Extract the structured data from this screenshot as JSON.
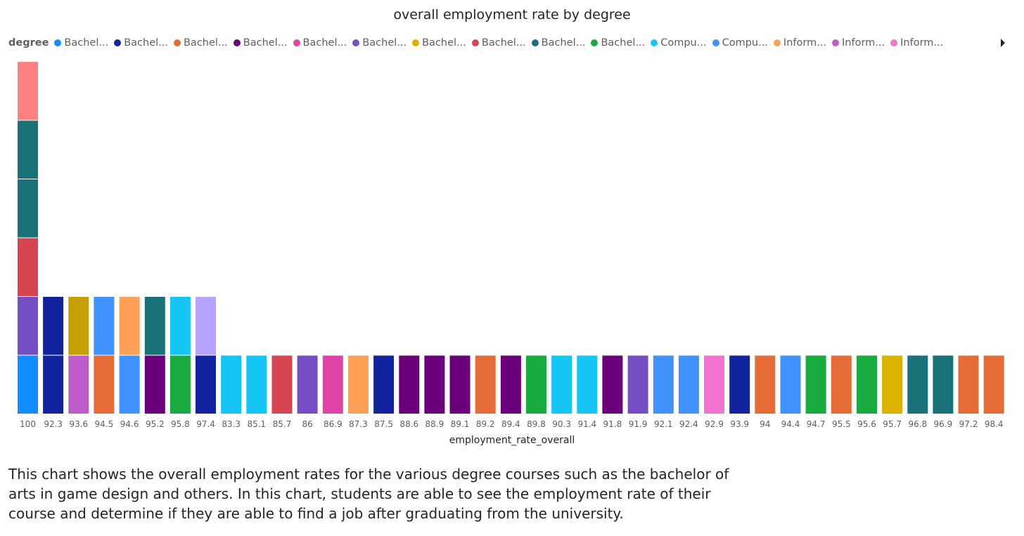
{
  "chart_data": {
    "type": "bar",
    "stacked": true,
    "title": "overall employment rate by degree",
    "xlabel": "employment_rate_overall",
    "ylabel": "",
    "legend_title": "degree",
    "legend_position": "top-left",
    "legend_entries": [
      {
        "label": "Bachel...",
        "color": "#118DFF"
      },
      {
        "label": "Bachel...",
        "color": "#12239E"
      },
      {
        "label": "Bachel...",
        "color": "#E66C37"
      },
      {
        "label": "Bachel...",
        "color": "#6B007B"
      },
      {
        "label": "Bachel...",
        "color": "#E044A7"
      },
      {
        "label": "Bachel...",
        "color": "#744EC2"
      },
      {
        "label": "Bachel...",
        "color": "#D9B300"
      },
      {
        "label": "Bachel...",
        "color": "#D64550"
      },
      {
        "label": "Bachel...",
        "color": "#197278"
      },
      {
        "label": "Bachel...",
        "color": "#1AAB40"
      },
      {
        "label": "Compu...",
        "color": "#15C6F4"
      },
      {
        "label": "Compu...",
        "color": "#4092FF"
      },
      {
        "label": "Inform...",
        "color": "#FFA058"
      },
      {
        "label": "Inform...",
        "color": "#BE5DC9"
      },
      {
        "label": "Inform...",
        "color": "#F472D0"
      }
    ],
    "categories": [
      "100",
      "92.3",
      "93.6",
      "94.5",
      "94.6",
      "95.2",
      "95.8",
      "97.4",
      "83.3",
      "85.1",
      "85.7",
      "86",
      "86.9",
      "87.3",
      "87.5",
      "88.6",
      "88.9",
      "89.1",
      "89.2",
      "89.4",
      "89.8",
      "90.3",
      "91.4",
      "91.8",
      "91.9",
      "92.1",
      "92.4",
      "92.9",
      "93.9",
      "94",
      "94.4",
      "94.7",
      "95.5",
      "95.6",
      "95.7",
      "96.8",
      "96.9",
      "97.2",
      "98.4"
    ],
    "stacks": [
      [
        "#118DFF",
        "#744EC2",
        "#D64550",
        "#197278",
        "#197278",
        "#FF8080"
      ],
      [
        "#12239E",
        "#12239E"
      ],
      [
        "#BE5DC9",
        "#C4A000"
      ],
      [
        "#E66C37",
        "#4092FF"
      ],
      [
        "#4092FF",
        "#FFA058"
      ],
      [
        "#6B007B",
        "#197278"
      ],
      [
        "#1AAB40",
        "#15C6F4"
      ],
      [
        "#12239E",
        "#B8A3FF"
      ],
      [
        "#15C6F4"
      ],
      [
        "#15C6F4"
      ],
      [
        "#D64550"
      ],
      [
        "#744EC2"
      ],
      [
        "#E044A7"
      ],
      [
        "#FFA058"
      ],
      [
        "#12239E"
      ],
      [
        "#6B007B"
      ],
      [
        "#6B007B"
      ],
      [
        "#6B007B"
      ],
      [
        "#E66C37"
      ],
      [
        "#6B007B"
      ],
      [
        "#1AAB40"
      ],
      [
        "#15C6F4"
      ],
      [
        "#15C6F4"
      ],
      [
        "#6B007B"
      ],
      [
        "#744EC2"
      ],
      [
        "#4092FF"
      ],
      [
        "#4092FF"
      ],
      [
        "#F472D0"
      ],
      [
        "#12239E"
      ],
      [
        "#E66C37"
      ],
      [
        "#4092FF"
      ],
      [
        "#1AAB40"
      ],
      [
        "#E66C37"
      ],
      [
        "#1AAB40"
      ],
      [
        "#D9B300"
      ],
      [
        "#197278"
      ],
      [
        "#197278"
      ],
      [
        "#E66C37"
      ],
      [
        "#E66C37"
      ]
    ],
    "ylim": [
      0,
      6
    ],
    "grid": false
  },
  "description": "This chart shows the overall employment rates for the various degree courses such as the bachelor of arts in game design and others. In this chart, students are able to see the employment rate of their course and determine if they are able to find a job after graduating from the university."
}
